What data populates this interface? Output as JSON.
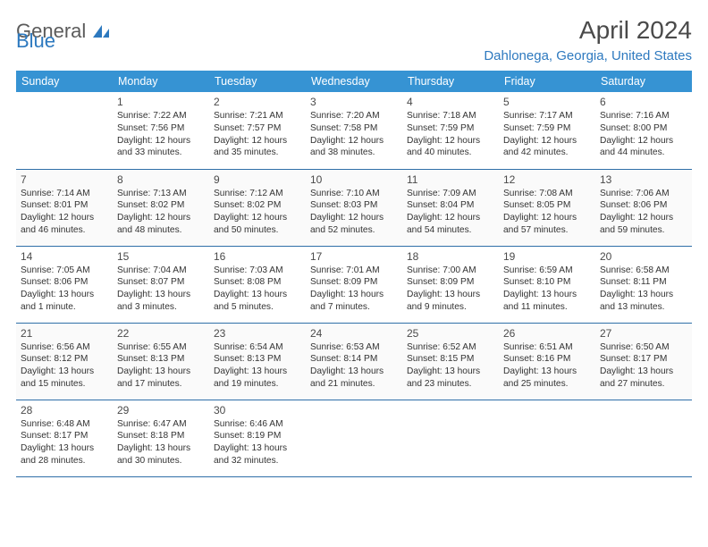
{
  "logo": {
    "word1": "General",
    "word2": "Blue"
  },
  "title": "April 2024",
  "location": "Dahlonega, Georgia, United States",
  "colors": {
    "header_bg": "#3693d3",
    "header_text": "#ffffff",
    "border": "#2f6fa8",
    "accent": "#2d79bf",
    "body_text": "#4a4a4a"
  },
  "dayHeaders": [
    "Sunday",
    "Monday",
    "Tuesday",
    "Wednesday",
    "Thursday",
    "Friday",
    "Saturday"
  ],
  "weeks": [
    [
      null,
      {
        "n": "1",
        "sunrise": "7:22 AM",
        "sunset": "7:56 PM",
        "daylight": "12 hours and 33 minutes."
      },
      {
        "n": "2",
        "sunrise": "7:21 AM",
        "sunset": "7:57 PM",
        "daylight": "12 hours and 35 minutes."
      },
      {
        "n": "3",
        "sunrise": "7:20 AM",
        "sunset": "7:58 PM",
        "daylight": "12 hours and 38 minutes."
      },
      {
        "n": "4",
        "sunrise": "7:18 AM",
        "sunset": "7:59 PM",
        "daylight": "12 hours and 40 minutes."
      },
      {
        "n": "5",
        "sunrise": "7:17 AM",
        "sunset": "7:59 PM",
        "daylight": "12 hours and 42 minutes."
      },
      {
        "n": "6",
        "sunrise": "7:16 AM",
        "sunset": "8:00 PM",
        "daylight": "12 hours and 44 minutes."
      }
    ],
    [
      {
        "n": "7",
        "sunrise": "7:14 AM",
        "sunset": "8:01 PM",
        "daylight": "12 hours and 46 minutes."
      },
      {
        "n": "8",
        "sunrise": "7:13 AM",
        "sunset": "8:02 PM",
        "daylight": "12 hours and 48 minutes."
      },
      {
        "n": "9",
        "sunrise": "7:12 AM",
        "sunset": "8:02 PM",
        "daylight": "12 hours and 50 minutes."
      },
      {
        "n": "10",
        "sunrise": "7:10 AM",
        "sunset": "8:03 PM",
        "daylight": "12 hours and 52 minutes."
      },
      {
        "n": "11",
        "sunrise": "7:09 AM",
        "sunset": "8:04 PM",
        "daylight": "12 hours and 54 minutes."
      },
      {
        "n": "12",
        "sunrise": "7:08 AM",
        "sunset": "8:05 PM",
        "daylight": "12 hours and 57 minutes."
      },
      {
        "n": "13",
        "sunrise": "7:06 AM",
        "sunset": "8:06 PM",
        "daylight": "12 hours and 59 minutes."
      }
    ],
    [
      {
        "n": "14",
        "sunrise": "7:05 AM",
        "sunset": "8:06 PM",
        "daylight": "13 hours and 1 minute."
      },
      {
        "n": "15",
        "sunrise": "7:04 AM",
        "sunset": "8:07 PM",
        "daylight": "13 hours and 3 minutes."
      },
      {
        "n": "16",
        "sunrise": "7:03 AM",
        "sunset": "8:08 PM",
        "daylight": "13 hours and 5 minutes."
      },
      {
        "n": "17",
        "sunrise": "7:01 AM",
        "sunset": "8:09 PM",
        "daylight": "13 hours and 7 minutes."
      },
      {
        "n": "18",
        "sunrise": "7:00 AM",
        "sunset": "8:09 PM",
        "daylight": "13 hours and 9 minutes."
      },
      {
        "n": "19",
        "sunrise": "6:59 AM",
        "sunset": "8:10 PM",
        "daylight": "13 hours and 11 minutes."
      },
      {
        "n": "20",
        "sunrise": "6:58 AM",
        "sunset": "8:11 PM",
        "daylight": "13 hours and 13 minutes."
      }
    ],
    [
      {
        "n": "21",
        "sunrise": "6:56 AM",
        "sunset": "8:12 PM",
        "daylight": "13 hours and 15 minutes."
      },
      {
        "n": "22",
        "sunrise": "6:55 AM",
        "sunset": "8:13 PM",
        "daylight": "13 hours and 17 minutes."
      },
      {
        "n": "23",
        "sunrise": "6:54 AM",
        "sunset": "8:13 PM",
        "daylight": "13 hours and 19 minutes."
      },
      {
        "n": "24",
        "sunrise": "6:53 AM",
        "sunset": "8:14 PM",
        "daylight": "13 hours and 21 minutes."
      },
      {
        "n": "25",
        "sunrise": "6:52 AM",
        "sunset": "8:15 PM",
        "daylight": "13 hours and 23 minutes."
      },
      {
        "n": "26",
        "sunrise": "6:51 AM",
        "sunset": "8:16 PM",
        "daylight": "13 hours and 25 minutes."
      },
      {
        "n": "27",
        "sunrise": "6:50 AM",
        "sunset": "8:17 PM",
        "daylight": "13 hours and 27 minutes."
      }
    ],
    [
      {
        "n": "28",
        "sunrise": "6:48 AM",
        "sunset": "8:17 PM",
        "daylight": "13 hours and 28 minutes."
      },
      {
        "n": "29",
        "sunrise": "6:47 AM",
        "sunset": "8:18 PM",
        "daylight": "13 hours and 30 minutes."
      },
      {
        "n": "30",
        "sunrise": "6:46 AM",
        "sunset": "8:19 PM",
        "daylight": "13 hours and 32 minutes."
      },
      null,
      null,
      null,
      null
    ]
  ],
  "labels": {
    "sunrise": "Sunrise:",
    "sunset": "Sunset:",
    "daylight": "Daylight:"
  }
}
